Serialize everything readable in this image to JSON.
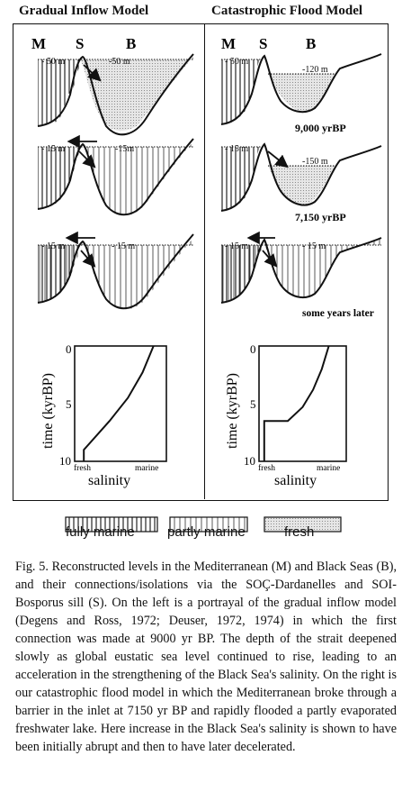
{
  "panels": {
    "left_title": "Gradual Inflow Model",
    "right_title": "Catastrophic Flood Model"
  },
  "letters": {
    "m": "M",
    "s": "S",
    "b": "B"
  },
  "depths": {
    "l1_left": "- 50 m",
    "l1_right": "-50 m",
    "l2_left": "- 15 m",
    "l2_right": "-15m",
    "l3_left": "- 15 m",
    "l3_right": "- 15 m",
    "r1_left": "- 50 m",
    "r1_right": "-120 m",
    "r2_left": "- 15 m",
    "r2_right": "-150 m",
    "r3_left": "- 15 m",
    "r3_right": "- 15 m"
  },
  "time_labels": {
    "t1": "9,000 yrBP",
    "t2": "7,150 yrBP",
    "t3": "some years later"
  },
  "chart_data": [
    {
      "type": "line",
      "title": "",
      "ylabel": "time (kyrBP)",
      "xlabel": "salinity",
      "x_tick_labels": [
        "fresh",
        "marine"
      ],
      "y_ticks": [
        "0",
        "5",
        "10"
      ],
      "ylim": [
        10,
        0
      ],
      "series": [
        {
          "x": [
            0.1,
            0.1,
            0.38,
            0.58,
            0.74,
            0.86
          ],
          "y": [
            10,
            9,
            6.5,
            4.5,
            2.3,
            0
          ]
        }
      ]
    },
    {
      "type": "line",
      "title": "",
      "ylabel": "time (kyrBP)",
      "xlabel": "salinity",
      "x_tick_labels": [
        "fresh",
        "marine"
      ],
      "y_ticks": [
        "0",
        "5",
        "10"
      ],
      "ylim": [
        10,
        0
      ],
      "series": [
        {
          "x": [
            0.06,
            0.06,
            0.33,
            0.5,
            0.62,
            0.72,
            0.8
          ],
          "y": [
            10,
            6.5,
            6.5,
            5.3,
            3.8,
            2.0,
            0
          ]
        }
      ]
    }
  ],
  "legend": {
    "marine": "fully marine",
    "partly": "partly marine",
    "fresh": "fresh"
  },
  "caption": "Fig. 5. Reconstructed levels in the Mediterranean (M) and Black Seas (B), and their connections/isolations via the SOÇ-Dardanelles and SOI-Bosporus sill (S). On the left is a portrayal of the gradual inflow model (Degens and Ross, 1972; Deuser, 1972, 1974) in which the first connection was made at 9000 yr BP. The depth of the strait deepened slowly as global eustatic sea level continued to rise, leading to an acceleration in the strengthening of the Black Sea's salinity. On the right is our catastrophic flood model in which the Mediterranean broke through a barrier in the inlet at 7150 yr BP and rapidly flooded a partly evaporated freshwater lake. Here increase in the Black Sea's salinity is shown to have been initially abrupt and then to have later decelerated."
}
